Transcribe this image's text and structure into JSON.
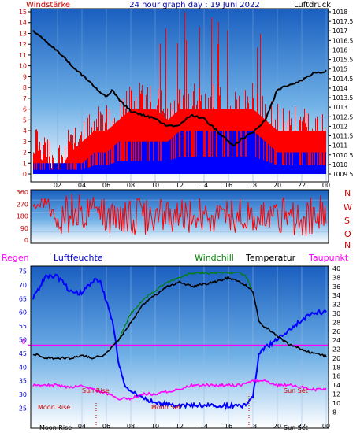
{
  "colors": {
    "wind": "#ff0000",
    "gust": "#0000ff",
    "pressure": "#000000",
    "humidity": "#0000ff",
    "windchill": "#008000",
    "temperature": "#000000",
    "dewpoint": "#ff00ff",
    "rain": "#ff00ff",
    "zero_line": "#ff00ff",
    "sun_moon_text": "#ff0000",
    "header_title": "#0000aa",
    "bg_top": "#1060c8",
    "bg_bottom": "#ffffff"
  },
  "header": {
    "left_label": "Windstärke",
    "title": "24 hour graph day : 19 Juni 2022",
    "right_label": "Luftdruck"
  },
  "labels": {
    "regen": "Regen",
    "luftfeuchte": "Luftfeuchte",
    "windchill": "Windchill",
    "temperatur": "Temperatur",
    "taupunkt": "Taupunkt",
    "compass": [
      "N",
      "W",
      "S",
      "O",
      "N"
    ],
    "sun_rise": "Sun Rise",
    "sun_set": "Sun Set",
    "moon_rise": "Moon Rise",
    "moon_set": "Moon Set",
    "bottom_left": "Moon Rise",
    "bottom_right": "Sun Set",
    "zero_mark": "0"
  },
  "chart_data": [
    {
      "type": "bar",
      "name": "wind_pressure",
      "x_ticks": [
        "02",
        "04",
        "06",
        "08",
        "10",
        "12",
        "14",
        "16",
        "18",
        "20",
        "22",
        "00"
      ],
      "wind_ticks": [
        0,
        1,
        2,
        3,
        4,
        5,
        6,
        7,
        8,
        9,
        10,
        11,
        12,
        13,
        14,
        15
      ],
      "wind_ylim": [
        0,
        15
      ],
      "pressure_ticks": [
        "1009.5",
        "1010",
        "1010.5",
        "1011",
        "1011.5",
        "1012",
        "1012.5",
        "1013",
        "1013.5",
        "1014",
        "1014.5",
        "1015",
        "1015.5",
        "1016",
        "1016.5",
        "1017",
        "1017.5",
        "1018"
      ],
      "pressure_ylim": [
        1009.5,
        1018
      ],
      "pressure_series": {
        "name": "Luftdruck",
        "x": [
          0,
          1,
          2,
          3,
          4,
          5,
          6,
          6.5,
          7,
          8,
          9,
          10,
          11,
          12,
          13,
          14,
          15,
          16,
          16.5,
          17,
          18,
          19,
          20,
          21,
          22,
          23,
          24
        ],
        "y": [
          1017.0,
          1016.5,
          1015.9,
          1015.3,
          1014.7,
          1014.1,
          1013.5,
          1013.9,
          1013.4,
          1012.8,
          1012.6,
          1012.4,
          1012.0,
          1012.1,
          1012.6,
          1012.4,
          1011.8,
          1011.2,
          1011.0,
          1011.3,
          1011.7,
          1012.3,
          1013.9,
          1014.2,
          1014.4,
          1014.8,
          1014.9
        ]
      },
      "wind_avg_level": {
        "name": "Windstärke",
        "x": [
          0,
          1,
          2,
          3,
          4,
          5,
          6,
          7,
          8,
          9,
          10,
          11,
          12,
          13,
          14,
          15,
          16,
          17,
          18,
          19,
          20,
          21,
          22,
          23,
          24
        ],
        "y": [
          2,
          1,
          0,
          2,
          3,
          4,
          4,
          5,
          6,
          6,
          6,
          5,
          6,
          6,
          6,
          6,
          6,
          6,
          6,
          5,
          4,
          4,
          4,
          4,
          4
        ]
      },
      "wind_gust_level": {
        "name": "Böen",
        "x": [
          0,
          1,
          2,
          3,
          4,
          5,
          6,
          7,
          8,
          9,
          10,
          11,
          12,
          13,
          14,
          15,
          16,
          17,
          18,
          19,
          20,
          21,
          22,
          23,
          24
        ],
        "y": [
          1,
          1,
          1,
          1,
          1,
          2,
          2,
          3,
          3,
          3,
          3,
          3,
          4,
          4,
          4,
          4,
          4,
          4,
          4,
          3,
          2,
          2,
          2,
          2,
          2
        ]
      }
    },
    {
      "type": "line",
      "name": "wind_direction",
      "y_ticks": [
        0,
        90,
        180,
        270,
        360
      ],
      "ylim": [
        0,
        360
      ],
      "extra_ticks": [
        60,
        120,
        210,
        300
      ],
      "series": {
        "x": [
          0,
          1,
          2,
          3,
          4,
          5,
          6,
          7,
          8,
          9,
          10,
          11,
          12,
          13,
          14,
          15,
          16,
          17,
          18,
          19,
          20,
          21,
          22,
          23,
          24
        ],
        "y_low": [
          230,
          240,
          50,
          20,
          20,
          200,
          20,
          60,
          30,
          40,
          40,
          60,
          40,
          50,
          70,
          40,
          60,
          30,
          50,
          60,
          60,
          40,
          30,
          20,
          50
        ],
        "y_high": [
          270,
          330,
          300,
          350,
          340,
          330,
          330,
          340,
          320,
          330,
          320,
          310,
          320,
          320,
          330,
          320,
          320,
          330,
          320,
          330,
          330,
          330,
          330,
          350,
          340
        ]
      }
    },
    {
      "type": "line",
      "name": "temp_humidity",
      "x_ticks": [
        "04",
        "06",
        "08",
        "10",
        "12",
        "14",
        "16",
        "18",
        "20",
        "22",
        "00"
      ],
      "humidity_ticks": [
        25,
        30,
        35,
        40,
        45,
        50,
        55,
        60,
        65,
        70,
        75
      ],
      "humidity_ylim": [
        22,
        76
      ],
      "temp_ticks": [
        8,
        10,
        12,
        14,
        16,
        18,
        20,
        22,
        24,
        26,
        28,
        30,
        32,
        34,
        36,
        38,
        40
      ],
      "temp_ylim": [
        7,
        40
      ],
      "series": [
        {
          "name": "Luftfeuchte",
          "x": [
            0,
            1,
            2,
            3,
            3.5,
            4,
            5,
            5.5,
            6,
            6.5,
            7,
            7.5,
            8,
            9,
            10,
            12,
            14,
            16,
            17,
            17.5,
            18,
            18.5,
            19,
            20,
            21,
            22,
            23,
            24
          ],
          "y": [
            65,
            73,
            73,
            68,
            67,
            67,
            72,
            71,
            64,
            57,
            42,
            34,
            31,
            29,
            27,
            26,
            26,
            26,
            26,
            26,
            29,
            45,
            47,
            50,
            54,
            57,
            60,
            60
          ]
        },
        {
          "name": "Temperatur",
          "x": [
            0,
            1,
            2,
            3,
            4,
            5,
            6,
            7,
            8,
            9,
            10,
            11,
            12,
            13,
            14,
            15,
            16,
            17,
            18,
            18.5,
            19,
            20,
            21,
            22,
            23,
            24
          ],
          "y": [
            21,
            20,
            20,
            20,
            20.5,
            20,
            21,
            24,
            28,
            32,
            34,
            36,
            37,
            36,
            36.5,
            37,
            38,
            37,
            35,
            28,
            27,
            25,
            23,
            22,
            21,
            20.5
          ]
        },
        {
          "name": "Windchill",
          "x": [
            7,
            8,
            9,
            10,
            11,
            12,
            13,
            14,
            15,
            16,
            17,
            17.5,
            18
          ],
          "y": [
            24,
            30,
            33,
            35,
            37,
            38,
            39,
            39,
            39,
            39,
            39,
            38,
            35
          ]
        },
        {
          "name": "Taupunkt",
          "x": [
            0,
            1,
            2,
            3,
            4,
            5,
            6,
            7,
            8,
            9,
            10,
            11,
            12,
            13,
            14,
            15,
            16,
            17,
            18,
            19,
            20,
            21,
            22,
            23,
            24
          ],
          "y": [
            14,
            14,
            14,
            13.5,
            14,
            13,
            12,
            11,
            11,
            12,
            12,
            12.5,
            13,
            14,
            14,
            14,
            14,
            14,
            15,
            15,
            14,
            14,
            13.5,
            13,
            13
          ]
        }
      ],
      "zero_line_humidity": 48
    }
  ]
}
